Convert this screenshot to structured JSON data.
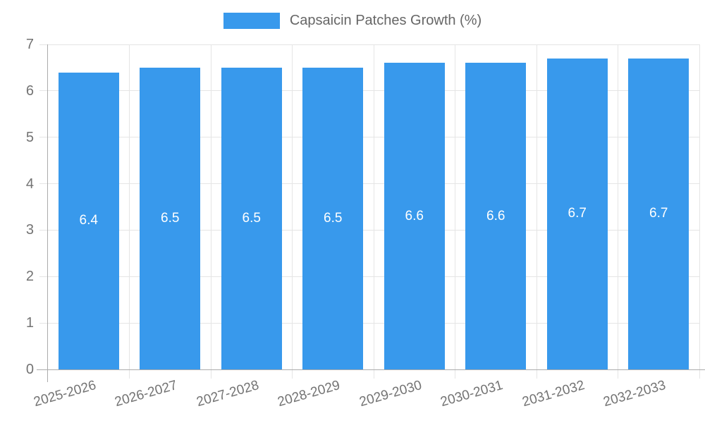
{
  "chart_data": {
    "type": "bar",
    "title": "",
    "legend": {
      "label": "Capsaicin Patches Growth (%)",
      "position": "top"
    },
    "categories": [
      "2025-2026",
      "2026-2027",
      "2027-2028",
      "2028-2029",
      "2029-2030",
      "2030-2031",
      "2031-2032",
      "2032-2033"
    ],
    "series": [
      {
        "name": "Capsaicin Patches Growth (%)",
        "values": [
          6.4,
          6.5,
          6.5,
          6.5,
          6.6,
          6.6,
          6.7,
          6.7
        ],
        "color": "#3899ec"
      }
    ],
    "yticks": [
      0,
      1,
      2,
      3,
      4,
      5,
      6,
      7
    ],
    "ylim": [
      0,
      7
    ],
    "xlabel": "",
    "ylabel": "",
    "grid": true,
    "value_label_decimals": 1,
    "colors": {
      "bar": "#3899ec",
      "grid": "#e5e5e5",
      "axis": "#ababab",
      "tick_label": "#737373",
      "value_label": "#ffffff",
      "legend_text": "#666666",
      "background": "#ffffff"
    }
  }
}
